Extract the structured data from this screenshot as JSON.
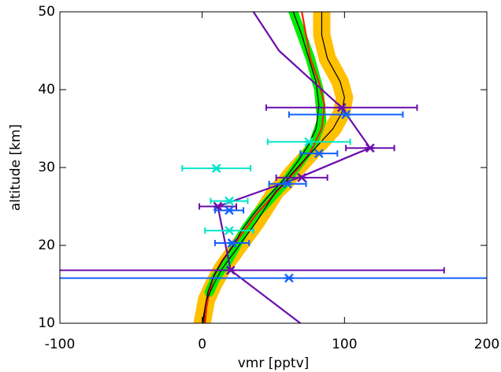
{
  "chart_data": {
    "type": "line",
    "xlabel": "vmr [pptv]",
    "ylabel": "altitude [km]",
    "xlim": [
      -100,
      200
    ],
    "ylim": [
      10,
      50
    ],
    "xticks": [
      -100,
      0,
      100,
      200
    ],
    "yticks": [
      10,
      20,
      30,
      40,
      50
    ],
    "series": [
      {
        "color": "#ffc000",
        "band": true,
        "y": [
          50,
          47,
          44,
          41,
          39,
          37,
          35,
          33,
          31,
          29,
          28,
          27,
          25,
          23,
          21,
          19,
          17,
          15,
          13,
          11,
          10
        ],
        "x": [
          84,
          84,
          88,
          97,
          100,
          98,
          92,
          82,
          72,
          62,
          58,
          52,
          45,
          38,
          30,
          22,
          14,
          8,
          3,
          1,
          0
        ]
      },
      {
        "color": "#00ee00",
        "band": true,
        "y": [
          50,
          47,
          44,
          40,
          36,
          33,
          30,
          28,
          26,
          24,
          22,
          20,
          18,
          16,
          14
        ],
        "x": [
          64,
          70,
          76,
          82,
          84,
          78,
          66,
          58,
          48,
          38,
          30,
          24,
          18,
          10,
          5
        ]
      },
      {
        "color": "#ff2000",
        "y": [
          50,
          47,
          44,
          41,
          38,
          35,
          32,
          30,
          28,
          26,
          24,
          22,
          20,
          18,
          16,
          14,
          12,
          10
        ],
        "x": [
          70,
          73,
          76,
          82,
          86,
          84,
          76,
          68,
          58,
          48,
          38,
          30,
          22,
          14,
          8,
          5,
          3,
          2
        ]
      },
      {
        "color": "#000000",
        "y": [
          50,
          47,
          44,
          41,
          38,
          35,
          33,
          31,
          29,
          28,
          26,
          24,
          22,
          20,
          18,
          16,
          14,
          12,
          10
        ],
        "x": [
          64,
          70,
          75,
          80,
          82,
          80,
          75,
          68,
          60,
          55,
          45,
          36,
          28,
          22,
          14,
          8,
          4,
          2,
          1
        ]
      },
      {
        "color": "#000000",
        "y": [
          50,
          47,
          44,
          41,
          39,
          37,
          35,
          33,
          31,
          29,
          28,
          27,
          25,
          23,
          21,
          19,
          17,
          15,
          13,
          11,
          10
        ],
        "x": [
          84,
          84,
          88,
          97,
          100,
          98,
          92,
          82,
          72,
          62,
          58,
          52,
          45,
          38,
          30,
          22,
          14,
          8,
          3,
          1,
          0
        ]
      },
      {
        "color": "#6a0dad",
        "y": [
          10,
          16.8,
          25,
          28.7,
          32,
          32.5,
          37.7,
          45,
          50
        ],
        "x": [
          69,
          20,
          11,
          68,
          111,
          118,
          98,
          54,
          36
        ]
      },
      {
        "color": "#6a0dad",
        "marker": "asterisk",
        "y": [
          16.8,
          25,
          28.7,
          32.5,
          37.7
        ],
        "x": [
          20,
          11,
          70,
          118,
          98
        ],
        "xerr": [
          150,
          13,
          18,
          17,
          53
        ]
      },
      {
        "color": "#00e5c8",
        "marker": "asterisk",
        "y": [
          29.9,
          25.7,
          21.9,
          33.3
        ],
        "x": [
          10,
          19,
          19,
          75
        ],
        "xerr": [
          24,
          13,
          17,
          29
        ]
      },
      {
        "color": "#1060ff",
        "marker": "asterisk",
        "y": [
          15.8,
          20.3,
          24.5,
          27.9,
          31.8,
          36.8
        ],
        "x": [
          61,
          21,
          19,
          60,
          82,
          101
        ],
        "xerr": [
          300,
          12,
          10,
          13,
          13,
          40
        ]
      }
    ]
  }
}
